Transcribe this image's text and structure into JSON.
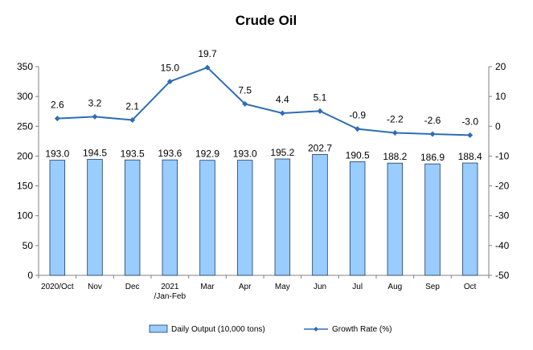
{
  "chart_data": {
    "type": "bar",
    "title": "Crude Oil",
    "categories": [
      [
        "2020/Oct"
      ],
      [
        "Nov"
      ],
      [
        "Dec"
      ],
      [
        "2021",
        "/Jan-Feb"
      ],
      [
        "Mar"
      ],
      [
        "Apr"
      ],
      [
        "May"
      ],
      [
        "Jun"
      ],
      [
        "Jul"
      ],
      [
        "Aug"
      ],
      [
        "Sep"
      ],
      [
        "Oct"
      ]
    ],
    "series": [
      {
        "name": "Daily Output (10,000 tons)",
        "type": "bar",
        "axis": "left",
        "color": "#99ccff",
        "values": [
          193.0,
          194.5,
          193.5,
          193.6,
          192.9,
          193.0,
          195.2,
          202.7,
          190.5,
          188.2,
          186.9,
          188.4
        ],
        "labels": [
          "193.0",
          "194.5",
          "193.5",
          "193.6",
          "192.9",
          "193.0",
          "195.2",
          "202.7",
          "190.5",
          "188.2",
          "186.9",
          "188.4"
        ]
      },
      {
        "name": "Growth Rate (%)",
        "type": "line",
        "axis": "right",
        "color": "#2e6db4",
        "values": [
          2.6,
          3.2,
          2.1,
          15.0,
          19.7,
          7.5,
          4.4,
          5.1,
          -0.9,
          -2.2,
          -2.6,
          -3.0
        ],
        "labels": [
          "2.6",
          "3.2",
          "2.1",
          "15.0",
          "19.7",
          "7.5",
          "4.4",
          "5.1",
          "-0.9",
          "-2.2",
          "-2.6",
          "-3.0"
        ]
      }
    ],
    "y_left": {
      "min": 0,
      "max": 350,
      "step": 50
    },
    "y_right": {
      "min": -50,
      "max": 20,
      "step": 10
    },
    "grid": false,
    "legend_position": "bottom"
  }
}
